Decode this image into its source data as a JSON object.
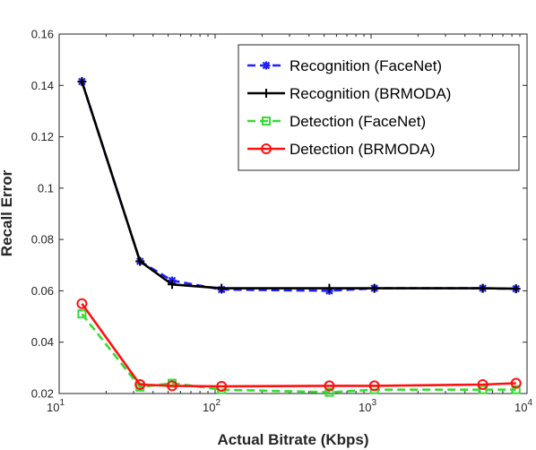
{
  "chart_data": {
    "type": "line",
    "title": "",
    "xlabel": "Actual Bitrate (Kbps)",
    "ylabel": "Recall Error",
    "x_scale": "log",
    "xlim": [
      10,
      10000
    ],
    "ylim": [
      0.02,
      0.16
    ],
    "grid": false,
    "legend_position": "top-right",
    "x_ticks": [
      {
        "value": 10,
        "base": "10",
        "exp": "1"
      },
      {
        "value": 100,
        "base": "10",
        "exp": "2"
      },
      {
        "value": 1000,
        "base": "10",
        "exp": "3"
      },
      {
        "value": 10000,
        "base": "10",
        "exp": "4"
      }
    ],
    "y_ticks": [
      {
        "value": 0.02,
        "label": "0.02"
      },
      {
        "value": 0.04,
        "label": "0.04"
      },
      {
        "value": 0.06,
        "label": "0.06"
      },
      {
        "value": 0.08,
        "label": "0.08"
      },
      {
        "value": 0.1,
        "label": "0.1"
      },
      {
        "value": 0.12,
        "label": "0.12"
      },
      {
        "value": 0.14,
        "label": "0.14"
      },
      {
        "value": 0.16,
        "label": "0.16"
      }
    ],
    "series": [
      {
        "name": "Recognition (FaceNet)",
        "color": "#1f1fff",
        "dash": true,
        "marker": "asterisk",
        "x": [
          14,
          33,
          53,
          110,
          540,
          1050,
          5200,
          8500
        ],
        "y": [
          0.1415,
          0.0715,
          0.064,
          0.0605,
          0.06,
          0.061,
          0.061,
          0.0608
        ]
      },
      {
        "name": "Recognition (BRMODA)",
        "color": "#000000",
        "dash": false,
        "marker": "plus",
        "x": [
          14,
          33,
          53,
          110,
          540,
          1050,
          5200,
          8500
        ],
        "y": [
          0.1415,
          0.0715,
          0.0625,
          0.061,
          0.061,
          0.061,
          0.061,
          0.0608
        ]
      },
      {
        "name": "Detection (FaceNet)",
        "color": "#33dd33",
        "dash": true,
        "marker": "square",
        "x": [
          14,
          33,
          53,
          110,
          540,
          1050,
          5200,
          8500
        ],
        "y": [
          0.051,
          0.0225,
          0.024,
          0.0215,
          0.0205,
          0.0215,
          0.0215,
          0.0215
        ]
      },
      {
        "name": "Detection (BRMODA)",
        "color": "#ff1111",
        "dash": false,
        "marker": "circle",
        "x": [
          14,
          33,
          53,
          110,
          540,
          1050,
          5200,
          8500
        ],
        "y": [
          0.055,
          0.0235,
          0.023,
          0.0228,
          0.023,
          0.023,
          0.0235,
          0.024
        ]
      }
    ]
  }
}
